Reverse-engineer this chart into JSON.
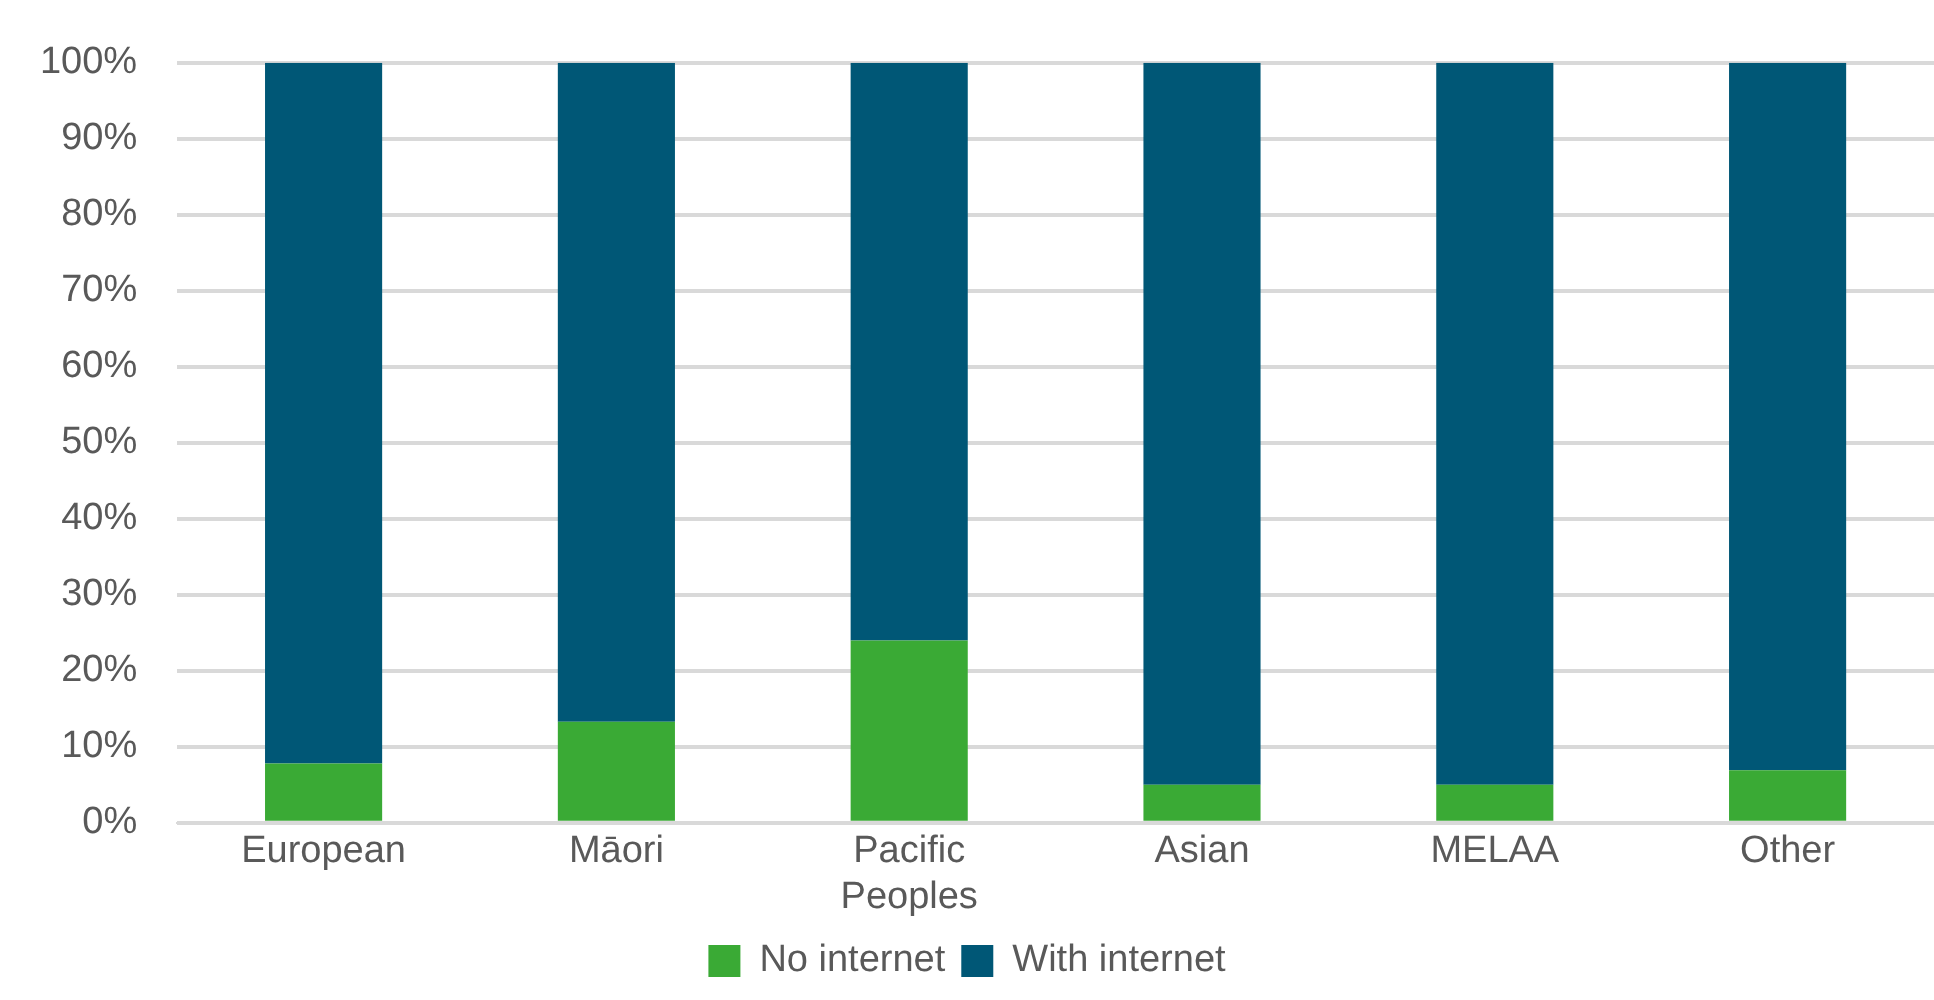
{
  "chart_data": {
    "type": "bar",
    "stacked": true,
    "categories": [
      "European",
      "Māori",
      "Pacific Peoples",
      "Asian",
      "MELAA",
      "Other"
    ],
    "series": [
      {
        "name": "No internet",
        "color": "#3aaa35",
        "values": [
          7.8,
          13.3,
          24,
          5,
          5,
          6.9
        ]
      },
      {
        "name": "With internet",
        "color": "#005776",
        "values": [
          92.2,
          86.7,
          76,
          95,
          95,
          93.1
        ]
      }
    ],
    "ylim": [
      0,
      100
    ],
    "yticks": [
      {
        "value": 0,
        "label": "0%"
      },
      {
        "value": 10,
        "label": "10%"
      },
      {
        "value": 20,
        "label": "20%"
      },
      {
        "value": 30,
        "label": "30%"
      },
      {
        "value": 40,
        "label": "40%"
      },
      {
        "value": 50,
        "label": "50%"
      },
      {
        "value": 60,
        "label": "60%"
      },
      {
        "value": 70,
        "label": "70%"
      },
      {
        "value": 80,
        "label": "80%"
      },
      {
        "value": 90,
        "label": "90%"
      },
      {
        "value": 100,
        "label": "100%"
      }
    ],
    "grid": "y",
    "legend": "bottom"
  }
}
